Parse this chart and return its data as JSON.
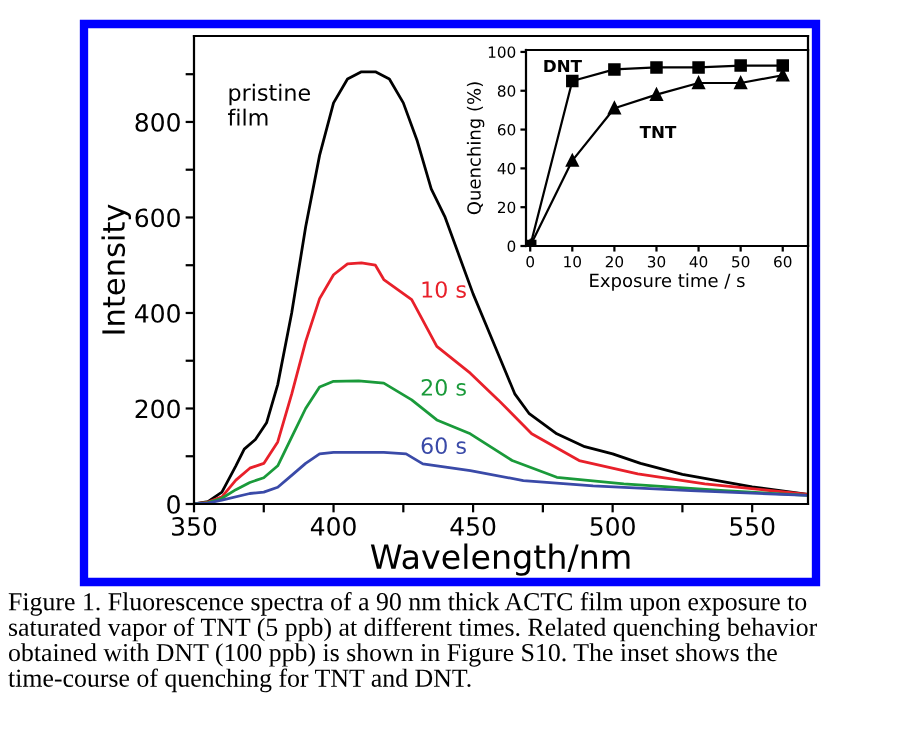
{
  "chart_data": [
    {
      "type": "line",
      "xlabel": "Wavelength/nm",
      "ylabel": "Intensity",
      "xlim": [
        350,
        570
      ],
      "ylim": [
        0,
        980
      ],
      "xticks": [
        350,
        {
          "value": 375,
          "label": null
        },
        400,
        {
          "value": 425,
          "label": null
        },
        450,
        {
          "value": 475,
          "label": null
        },
        500,
        {
          "value": 525,
          "label": null
        },
        550
      ],
      "yticks": [
        0,
        {
          "value": 100,
          "label": null
        },
        200,
        {
          "value": 300,
          "label": null
        },
        400,
        {
          "value": 500,
          "label": null
        },
        600,
        {
          "value": 700,
          "label": null
        },
        800,
        {
          "value": 900,
          "label": null
        }
      ],
      "grid": false,
      "legend": false,
      "marker": "none",
      "line_style": "solid",
      "series": [
        {
          "name": "pristine film",
          "color": "#000000",
          "x": [
            350,
            355,
            360,
            365,
            368,
            372,
            376,
            380,
            385,
            390,
            395,
            400,
            405,
            410,
            415,
            420,
            425,
            430,
            435,
            440,
            445,
            450,
            455,
            460,
            465,
            470,
            480,
            490,
            500,
            510,
            525,
            550,
            570
          ],
          "values": [
            0,
            5,
            25,
            80,
            115,
            135,
            170,
            250,
            400,
            580,
            730,
            840,
            890,
            905,
            905,
            890,
            840,
            760,
            660,
            600,
            520,
            440,
            370,
            300,
            230,
            190,
            147,
            120,
            105,
            85,
            62,
            36,
            20
          ]
        },
        {
          "name": "10 s",
          "color": "#e8202a",
          "x": [
            350,
            355,
            360,
            365,
            370,
            375,
            380,
            385,
            390,
            395,
            400,
            405,
            410,
            415,
            418,
            428,
            437,
            449,
            459,
            471,
            488,
            509,
            533,
            570
          ],
          "values": [
            0,
            4,
            15,
            50,
            75,
            85,
            130,
            230,
            340,
            430,
            480,
            503,
            505,
            500,
            470,
            428,
            330,
            274,
            218,
            147,
            91,
            63,
            42,
            20
          ]
        },
        {
          "name": "20 s",
          "color": "#1a9a3a",
          "x": [
            350,
            355,
            360,
            365,
            370,
            375,
            380,
            385,
            390,
            395,
            400,
            409,
            418,
            428,
            437,
            449,
            464,
            480,
            504,
            540,
            570
          ],
          "values": [
            0,
            3,
            12,
            30,
            45,
            55,
            80,
            140,
            200,
            245,
            257,
            258,
            253,
            218,
            176,
            147,
            91,
            56,
            42,
            28,
            18
          ]
        },
        {
          "name": "60 s",
          "color": "#3a4aa8",
          "x": [
            350,
            355,
            360,
            370,
            375,
            380,
            385,
            390,
            395,
            400,
            410,
            418,
            426,
            432,
            449,
            468,
            493,
            528,
            570
          ],
          "values": [
            0,
            2,
            8,
            22,
            25,
            35,
            60,
            85,
            105,
            108,
            108,
            108,
            105,
            84,
            70,
            49,
            38,
            28,
            18
          ]
        }
      ],
      "annotations": [
        "Figure 1. Fluorescence spectra of a 90 nm thick ACTC film upon exposure to saturated vapor of TNT (5 ppb) at different times. Related quenching behavior obtained with DNT (100 ppb) is shown in Figure S10. The inset shows the time-course of quenching for TNT and DNT."
      ]
    },
    {
      "type": "line",
      "xlabel": "Exposure time / s",
      "ylabel": "Quenching (%)",
      "xlim": [
        -1,
        66
      ],
      "ylim": [
        0,
        101
      ],
      "xticks": [
        0,
        10,
        20,
        30,
        40,
        50,
        60
      ],
      "yticks": [
        0,
        20,
        40,
        60,
        80,
        100
      ],
      "grid": false,
      "legend": false,
      "line_style": "solid",
      "series": [
        {
          "name": "DNT",
          "color": "#000000",
          "marker": "square",
          "x": [
            0,
            10,
            20,
            30,
            40,
            50,
            60
          ],
          "values": [
            0,
            85,
            91,
            92,
            92,
            93,
            93
          ]
        },
        {
          "name": "TNT",
          "color": "#000000",
          "marker": "triangle",
          "x": [
            0,
            10,
            20,
            30,
            40,
            50,
            60
          ],
          "values": [
            0,
            44,
            71,
            78,
            84,
            84,
            88
          ]
        }
      ]
    }
  ]
}
